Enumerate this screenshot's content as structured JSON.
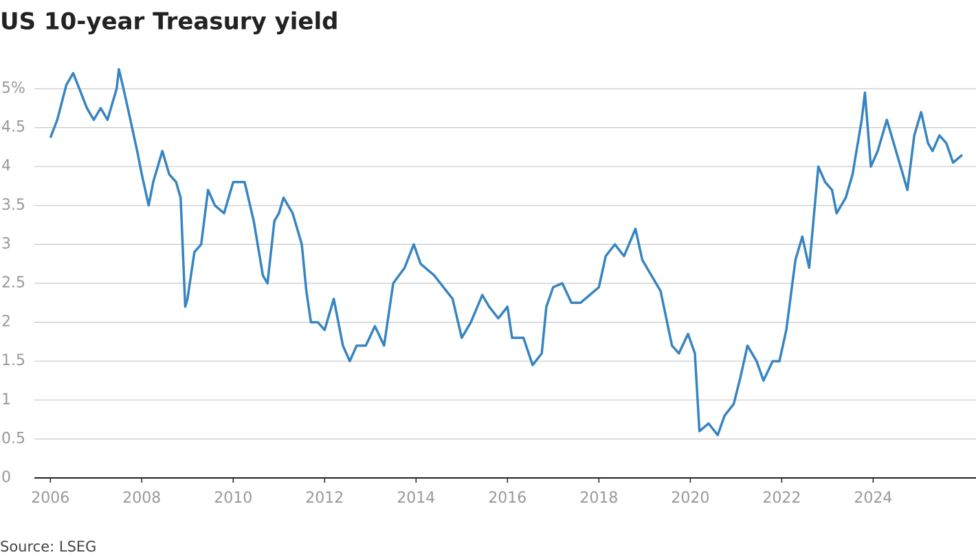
{
  "chart_data": {
    "type": "line",
    "title": "US 10-year Treasury yield",
    "source": "Source: LSEG",
    "color": "#3684c1",
    "grid": true,
    "x": [
      2006.0,
      2006.15,
      2006.35,
      2006.5,
      2006.6,
      2006.8,
      2006.95,
      2007.1,
      2007.25,
      2007.45,
      2007.5,
      2007.6,
      2007.75,
      2007.9,
      2008.0,
      2008.15,
      2008.25,
      2008.45,
      2008.6,
      2008.75,
      2008.85,
      2008.95,
      2009.0,
      2009.15,
      2009.3,
      2009.45,
      2009.6,
      2009.8,
      2010.0,
      2010.25,
      2010.45,
      2010.65,
      2010.75,
      2010.9,
      2011.0,
      2011.1,
      2011.3,
      2011.5,
      2011.6,
      2011.7,
      2011.85,
      2012.0,
      2012.2,
      2012.4,
      2012.55,
      2012.7,
      2012.9,
      2013.1,
      2013.3,
      2013.5,
      2013.75,
      2013.95,
      2014.1,
      2014.4,
      2014.6,
      2014.8,
      2015.0,
      2015.2,
      2015.45,
      2015.6,
      2015.8,
      2016.0,
      2016.1,
      2016.35,
      2016.55,
      2016.75,
      2016.85,
      2017.0,
      2017.2,
      2017.4,
      2017.6,
      2017.8,
      2018.0,
      2018.15,
      2018.35,
      2018.55,
      2018.8,
      2018.95,
      2019.1,
      2019.35,
      2019.6,
      2019.75,
      2019.95,
      2020.1,
      2020.2,
      2020.4,
      2020.6,
      2020.75,
      2020.95,
      2021.1,
      2021.25,
      2021.45,
      2021.6,
      2021.8,
      2021.95,
      2022.1,
      2022.3,
      2022.45,
      2022.6,
      2022.8,
      2022.95,
      2023.1,
      2023.2,
      2023.4,
      2023.55,
      2023.75,
      2023.82,
      2023.95,
      2024.1,
      2024.3,
      2024.45,
      2024.6,
      2024.75,
      2024.9,
      2025.05,
      2025.2,
      2025.3,
      2025.45,
      2025.6,
      2025.75,
      2025.95
    ],
    "values": [
      4.37,
      4.6,
      5.05,
      5.2,
      5.05,
      4.75,
      4.6,
      4.75,
      4.6,
      5.0,
      5.25,
      5.0,
      4.6,
      4.2,
      3.9,
      3.5,
      3.8,
      4.2,
      3.9,
      3.8,
      3.6,
      2.2,
      2.3,
      2.9,
      3.0,
      3.7,
      3.5,
      3.4,
      3.8,
      3.8,
      3.3,
      2.6,
      2.5,
      3.3,
      3.4,
      3.6,
      3.4,
      3.0,
      2.4,
      2.0,
      2.0,
      1.9,
      2.3,
      1.7,
      1.5,
      1.7,
      1.7,
      1.95,
      1.7,
      2.5,
      2.7,
      3.0,
      2.75,
      2.6,
      2.45,
      2.3,
      1.8,
      2.0,
      2.35,
      2.2,
      2.05,
      2.2,
      1.8,
      1.8,
      1.45,
      1.6,
      2.2,
      2.45,
      2.5,
      2.25,
      2.25,
      2.35,
      2.45,
      2.85,
      3.0,
      2.85,
      3.2,
      2.8,
      2.65,
      2.4,
      1.7,
      1.6,
      1.85,
      1.6,
      0.6,
      0.7,
      0.55,
      0.8,
      0.95,
      1.3,
      1.7,
      1.5,
      1.25,
      1.5,
      1.5,
      1.9,
      2.8,
      3.1,
      2.7,
      4.0,
      3.8,
      3.7,
      3.4,
      3.6,
      3.9,
      4.6,
      4.95,
      4.0,
      4.2,
      4.6,
      4.3,
      4.0,
      3.7,
      4.4,
      4.7,
      4.3,
      4.2,
      4.4,
      4.3,
      4.05,
      4.15
    ],
    "xlim": [
      2005.65,
      2026.25
    ],
    "xticks": [
      2006,
      2008,
      2010,
      2012,
      2014,
      2016,
      2018,
      2020,
      2022,
      2024
    ],
    "ylim": [
      0,
      5.5
    ],
    "yticks": [
      0,
      0.5,
      1,
      1.5,
      2,
      2.5,
      3,
      3.5,
      4,
      4.5,
      {
        "value": 5,
        "label": "5%"
      }
    ]
  }
}
